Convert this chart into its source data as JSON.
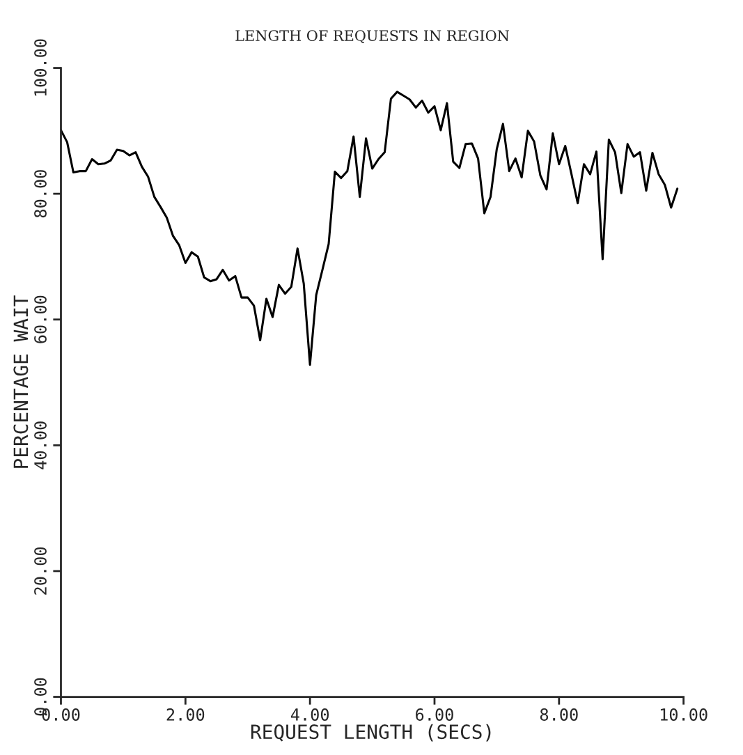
{
  "chart_data": {
    "type": "line",
    "title": "LENGTH OF REQUESTS IN REGION",
    "xlabel": "REQUEST LENGTH (SECS)",
    "ylabel": "PERCENTAGE WAIT",
    "xlim": [
      0,
      10
    ],
    "ylim": [
      0,
      100
    ],
    "xticks": [
      {
        "value": 0,
        "label": "0.00"
      },
      {
        "value": 2,
        "label": "2.00"
      },
      {
        "value": 4,
        "label": "4.00"
      },
      {
        "value": 6,
        "label": "6.00"
      },
      {
        "value": 8,
        "label": "8.00"
      },
      {
        "value": 10,
        "label": "10.00"
      }
    ],
    "yticks": [
      {
        "value": 0,
        "label": "0.00"
      },
      {
        "value": 20,
        "label": "20.00"
      },
      {
        "value": 40,
        "label": "40.00"
      },
      {
        "value": 60,
        "label": "60.00"
      },
      {
        "value": 80,
        "label": "80.00"
      },
      {
        "value": 100,
        "label": "100.00"
      }
    ],
    "grid": false,
    "marker": "none",
    "line_style": "solid",
    "series": [
      {
        "color": "#000000",
        "x": [
          0,
          0.1,
          0.2,
          0.3,
          0.4,
          0.5,
          0.6,
          0.7,
          0.8,
          0.9,
          1.0,
          1.1,
          1.2,
          1.3,
          1.4,
          1.5,
          1.6,
          1.7,
          1.8,
          1.9,
          2.0,
          2.1,
          2.2,
          2.3,
          2.4,
          2.5,
          2.6,
          2.7,
          2.8,
          2.9,
          3.0,
          3.1,
          3.2,
          3.3,
          3.4,
          3.5,
          3.6,
          3.7,
          3.8,
          3.9,
          4.0,
          4.1,
          4.2,
          4.3,
          4.4,
          4.5,
          4.6,
          4.7,
          4.8,
          4.9,
          5.0,
          5.1,
          5.2,
          5.3,
          5.4,
          5.5,
          5.6,
          5.7,
          5.8,
          5.9,
          6.0,
          6.1,
          6.2,
          6.3,
          6.4,
          6.5,
          6.6,
          6.7,
          6.8,
          6.9,
          7.0,
          7.1,
          7.2,
          7.3,
          7.4,
          7.5,
          7.6,
          7.7,
          7.8,
          7.9,
          8.0,
          8.1,
          8.2,
          8.3,
          8.4,
          8.5,
          8.6,
          8.7,
          8.8,
          8.9,
          9.0,
          9.1,
          9.2,
          9.3,
          9.4,
          9.5,
          9.6,
          9.7,
          9.8,
          9.9
        ],
        "values": [
          90.1,
          88.2,
          83.4,
          83.6,
          83.6,
          85.5,
          84.7,
          84.8,
          85.3,
          87.0,
          86.8,
          86.1,
          86.6,
          84.3,
          82.7,
          79.5,
          77.9,
          76.2,
          73.3,
          71.8,
          69.0,
          70.7,
          70.0,
          66.7,
          66.1,
          66.4,
          67.9,
          66.2,
          66.9,
          63.5,
          63.5,
          62.2,
          56.7,
          63.3,
          60.4,
          65.5,
          64.1,
          65.2,
          71.3,
          65.7,
          52.8,
          63.9,
          67.9,
          72.0,
          83.5,
          82.5,
          83.6,
          89.1,
          79.5,
          88.8,
          84.0,
          85.5,
          86.6,
          95.1,
          96.2,
          95.6,
          95.0,
          93.7,
          94.8,
          92.9,
          93.9,
          90.1,
          94.4,
          85.1,
          84.1,
          87.9,
          88.0,
          85.6,
          76.9,
          79.5,
          87.1,
          91.1,
          83.6,
          85.6,
          82.6,
          90.0,
          88.3,
          82.9,
          80.7,
          89.6,
          84.7,
          87.6,
          83.1,
          78.5,
          84.7,
          83.1,
          86.7,
          69.6,
          88.6,
          86.6,
          80.1,
          87.9,
          85.9,
          86.6,
          80.5,
          86.5,
          83.1,
          81.4,
          77.8,
          80.8
        ]
      }
    ]
  }
}
